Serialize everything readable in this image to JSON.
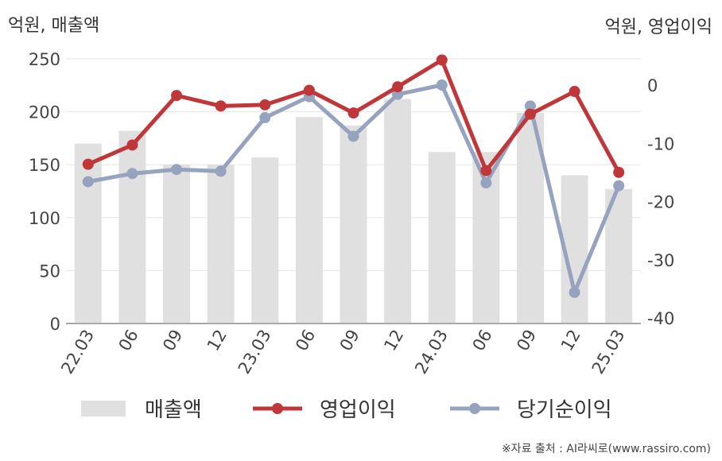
{
  "chart_data": {
    "type": "bar+line",
    "categories": [
      "22.03",
      "06",
      "09",
      "12",
      "23.03",
      "06",
      "09",
      "12",
      "24.03",
      "06",
      "09",
      "12",
      "25.03"
    ],
    "series": [
      {
        "name": "매출액",
        "type": "bar",
        "axis": "left",
        "color": "#e0e0e0",
        "values": [
          170,
          182,
          150,
          150,
          157,
          195,
          187,
          212,
          162,
          162,
          199,
          140,
          127
        ]
      },
      {
        "name": "영업이익",
        "type": "line",
        "axis": "right",
        "color": "#c0373a",
        "values": [
          -13.6,
          -10.3,
          -1.8,
          -3.6,
          -3.4,
          -0.9,
          -4.8,
          -0.3,
          4.3,
          -14.7,
          -5.0,
          -1.1,
          -15.0
        ]
      },
      {
        "name": "당기순이익",
        "type": "line",
        "axis": "right",
        "color": "#95a3bf",
        "values": [
          -16.6,
          -15.2,
          -14.5,
          -14.8,
          -5.6,
          -2.0,
          -8.8,
          -1.6,
          0.0,
          -16.8,
          -3.6,
          -35.6,
          -17.3
        ]
      }
    ],
    "yleft": {
      "label": "억원, 매출액",
      "ylim": [
        0,
        250
      ],
      "ticks": [
        "250",
        "200",
        "150",
        "100",
        "50",
        "0"
      ],
      "tick_values": [
        250,
        200,
        150,
        100,
        50,
        0
      ]
    },
    "yright": {
      "label": "억원, 영업이익",
      "ylim": [
        -40,
        5
      ],
      "ticks": [
        "0",
        "-10",
        "-20",
        "-30",
        "-40"
      ],
      "tick_values": [
        0,
        -10,
        -20,
        -30,
        -40
      ]
    },
    "grid": true,
    "legend_position": "bottom"
  },
  "source_text": "※자료 출처 : AI라씨로(www.rassiro.com)"
}
